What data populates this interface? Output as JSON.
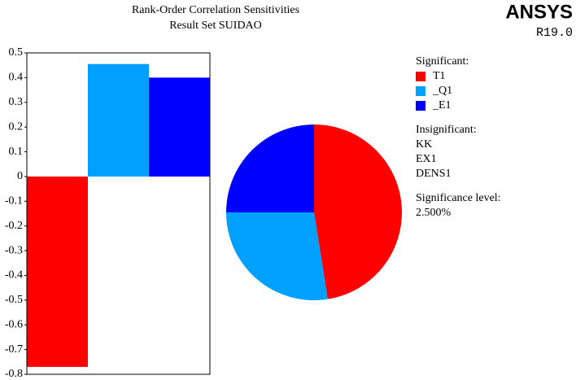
{
  "chart_data": [
    {
      "type": "bar",
      "title": "Rank-Order Correlation Sensitivities",
      "subtitle": "Result Set SUIDAO",
      "categories": [
        "T1",
        "_Q1",
        "_E1"
      ],
      "values": [
        -0.77,
        0.455,
        0.4
      ],
      "colors": [
        "#ff0000",
        "#00a0ff",
        "#0000ff"
      ],
      "ylim": [
        -0.8,
        0.5
      ],
      "yticks": [
        0.5,
        0.4,
        0.3,
        0.2,
        0.1,
        0,
        -0.1,
        -0.2,
        -0.3,
        -0.4,
        -0.5,
        -0.6,
        -0.7,
        -0.8
      ]
    },
    {
      "type": "pie",
      "values": [
        47.5,
        27.5,
        25
      ],
      "colors": [
        "#ff0000",
        "#00a0ff",
        "#0000ff"
      ]
    }
  ],
  "legend": {
    "significant_heading": "Significant:",
    "insignificant_heading": "Insignificant:",
    "insignificant": [
      "KK",
      "EX1",
      "DENS1"
    ],
    "level_heading": "Significance level:",
    "level": "2.500%"
  },
  "logo": {
    "name": "ANSYS",
    "version": "R19.0"
  }
}
